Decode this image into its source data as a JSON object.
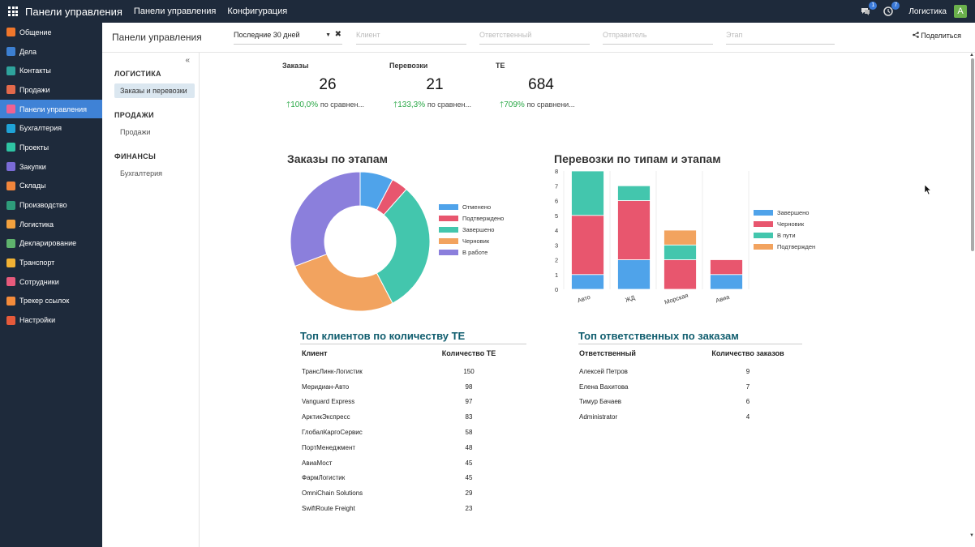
{
  "topbar": {
    "title": "Панели управления",
    "menu": [
      "Панели управления",
      "Конфигурация"
    ],
    "chat_badge": "1",
    "activity_badge": "7",
    "company": "Логистика",
    "avatar_letter": "A"
  },
  "sidebar": {
    "items": [
      {
        "label": "Общение",
        "color": "#f0762b"
      },
      {
        "label": "Дела",
        "color": "#3c7fd1"
      },
      {
        "label": "Контакты",
        "color": "#2ea39c"
      },
      {
        "label": "Продажи",
        "color": "#e2694b"
      },
      {
        "label": "Панели управления",
        "color": "#f06292"
      },
      {
        "label": "Бухгалтерия",
        "color": "#1fa2d6"
      },
      {
        "label": "Проекты",
        "color": "#2ec4a3"
      },
      {
        "label": "Закупки",
        "color": "#7a6bd6"
      },
      {
        "label": "Склады",
        "color": "#f1853b"
      },
      {
        "label": "Производство",
        "color": "#2e9c7a"
      },
      {
        "label": "Логистика",
        "color": "#f2a13e"
      },
      {
        "label": "Декларирование",
        "color": "#5fb36d"
      },
      {
        "label": "Транспорт",
        "color": "#f2b234"
      },
      {
        "label": "Сотрудники",
        "color": "#e75a7c"
      },
      {
        "label": "Трекер ссылок",
        "color": "#f48b3b"
      },
      {
        "label": "Настройки",
        "color": "#e55a3b"
      }
    ]
  },
  "control": {
    "breadcrumb": "Панели управления",
    "period": "Последние 30 дней",
    "filters": [
      "Клиент",
      "Ответственный",
      "Отправитель",
      "Этап"
    ],
    "share": "Поделиться"
  },
  "leftpanel": {
    "sections": [
      {
        "title": "ЛОГИСТИКА",
        "items": [
          "Заказы и перевозки"
        ]
      },
      {
        "title": "ПРОДАЖИ",
        "items": [
          "Продажи"
        ]
      },
      {
        "title": "ФИНАНСЫ",
        "items": [
          "Бухгалтерия"
        ]
      }
    ]
  },
  "kpis": [
    {
      "label": "Заказы",
      "value": "26",
      "change": "100,0%",
      "compare": "по сравнен..."
    },
    {
      "label": "Перевозки",
      "value": "21",
      "change": "133,3%",
      "compare": "по сравнен..."
    },
    {
      "label": "ТЕ",
      "value": "684",
      "change": "709%",
      "compare": "по сравнени..."
    }
  ],
  "chart_data": [
    {
      "type": "pie",
      "title": "Заказы по этапам",
      "labels": [
        "Отменено",
        "Подтверждено",
        "Завершено",
        "Черновик",
        "В работе"
      ],
      "values": [
        2,
        1,
        8,
        7,
        8
      ],
      "colors": [
        "#4fa3ea",
        "#e8566e",
        "#43c6ad",
        "#f2a35f",
        "#8b7fdc"
      ],
      "legend": "right"
    },
    {
      "type": "bar",
      "stacked": true,
      "title": "Перевозки по типам и этапам",
      "categories": [
        "Авто",
        "ЖД",
        "Морская",
        "Авиа"
      ],
      "series": [
        {
          "name": "Завершено",
          "color": "#4fa3ea",
          "values": [
            1,
            2,
            0,
            1
          ]
        },
        {
          "name": "Черновик",
          "color": "#e8566e",
          "values": [
            4,
            4,
            2,
            1
          ]
        },
        {
          "name": "В пути",
          "color": "#43c6ad",
          "values": [
            3,
            1,
            1,
            0
          ]
        },
        {
          "name": "Подтвержден",
          "color": "#f2a35f",
          "values": [
            0,
            0,
            1,
            0
          ]
        }
      ],
      "ylim": [
        0,
        8
      ],
      "yticks": [
        "0",
        "1",
        "2",
        "3",
        "4",
        "5",
        "6",
        "7",
        "8"
      ],
      "legend": "right"
    }
  ],
  "top_clients": {
    "title": "Топ клиентов по количеству ТЕ",
    "headers": [
      "Клиент",
      "Количество ТЕ"
    ],
    "rows": [
      [
        "ТрансЛинк-Логистик",
        "150"
      ],
      [
        "Меридиан-Авто",
        "98"
      ],
      [
        "Vanguard Express",
        "97"
      ],
      [
        "АрктикЭкспресс",
        "83"
      ],
      [
        "ГлобалКаргоСервис",
        "58"
      ],
      [
        "ПортМенеджмент",
        "48"
      ],
      [
        "АвиаМост",
        "45"
      ],
      [
        "ФармЛогистик",
        "45"
      ],
      [
        "OmniChain Solutions",
        "29"
      ],
      [
        "SwiftRoute Freight",
        "23"
      ]
    ]
  },
  "top_responsible": {
    "title": "Топ ответственных по заказам",
    "headers": [
      "Ответственный",
      "Количество заказов"
    ],
    "rows": [
      [
        "Алексей Петров",
        "9"
      ],
      [
        "Елена Вахитова",
        "7"
      ],
      [
        "Тимур Бачаев",
        "6"
      ],
      [
        "Administrator",
        "4"
      ]
    ]
  }
}
